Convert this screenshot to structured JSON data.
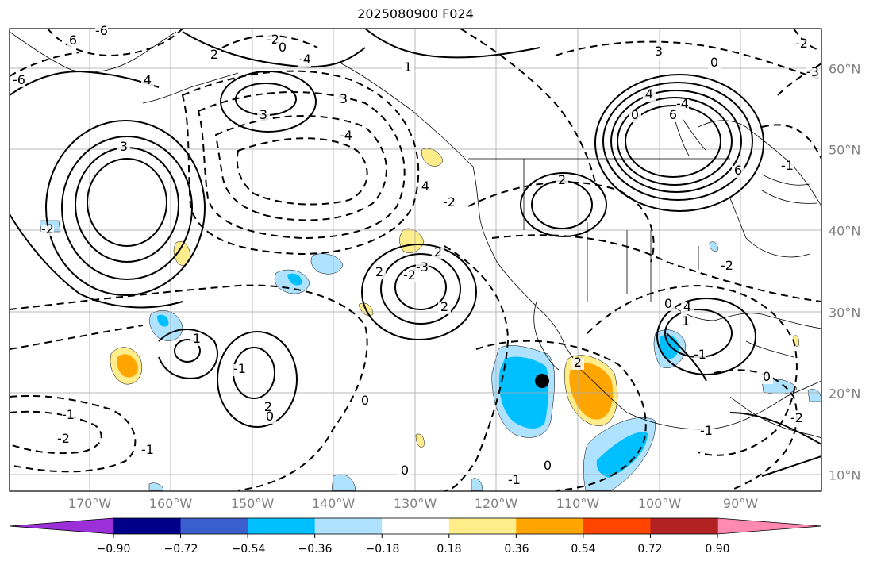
{
  "title": "2025080900 F024",
  "longitude_labels": [
    "170°W",
    "160°W",
    "150°W",
    "140°W",
    "130°W",
    "120°W",
    "110°W",
    "100°W",
    "90°W"
  ],
  "latitude_labels": [
    "60°N",
    "50°N",
    "40°N",
    "30°N",
    "20°N",
    "10°N"
  ],
  "contour_labels": [
    "-6",
    "6",
    "-2",
    "0",
    "-6",
    "4",
    "3",
    "-4",
    "1",
    "-2",
    "2",
    "-4",
    "3",
    "6",
    "-4",
    "0",
    "3",
    "4",
    "2",
    "6",
    "4",
    "3",
    "0",
    "-2",
    "2",
    "-3",
    "-2",
    "2",
    "2",
    "0",
    "1",
    "-1",
    "2",
    "0",
    "-1",
    "-2",
    "-1",
    "0",
    "-1",
    "0",
    "-1",
    "0",
    "-2",
    "1",
    "-1",
    "-2",
    "2",
    "-1",
    "0",
    "4",
    "-2",
    "-3"
  ],
  "colorbar": {
    "tick_labels": [
      "−0.90",
      "−0.72",
      "−0.54",
      "−0.36",
      "−0.18",
      "0.18",
      "0.36",
      "0.54",
      "0.72",
      "0.90"
    ],
    "colors": [
      "#9b30d9",
      "#00008b",
      "#3a5fcd",
      "#00bfff",
      "#aee2ff",
      "#ffffff",
      "#ffec8b",
      "#ffa500",
      "#ff4500",
      "#b22222",
      "#ff89b0"
    ],
    "levels": [
      -0.9,
      -0.72,
      -0.54,
      -0.36,
      -0.18,
      0.18,
      0.36,
      0.54,
      0.72,
      0.9
    ]
  },
  "marker": {
    "lon": "114°W",
    "lat": "21.5°N"
  }
}
